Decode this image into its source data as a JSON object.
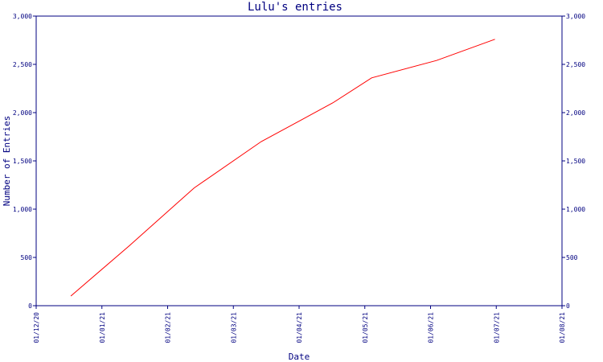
{
  "chart_data": {
    "type": "line",
    "title": "Lulu's entries",
    "xlabel": "Date",
    "ylabel": "Number of Entries",
    "x_ticks": [
      "01/12/20",
      "01/01/21",
      "01/02/21",
      "01/03/21",
      "01/04/21",
      "01/05/21",
      "01/06/21",
      "01/07/21",
      "01/08/21"
    ],
    "y_ticks": [
      "0",
      "500",
      "1,000",
      "1,500",
      "2,000",
      "2,500",
      "3,000"
    ],
    "ylim": [
      0,
      3000
    ],
    "xlim": [
      "2020-12-01",
      "2021-08-01"
    ],
    "grid": false,
    "series": [
      {
        "color": "#ff0000",
        "points": [
          {
            "x": "2020-12-17",
            "y": 100
          },
          {
            "x": "2021-01-13",
            "y": 620
          },
          {
            "x": "2021-02-12",
            "y": 1220
          },
          {
            "x": "2021-03-15",
            "y": 1700
          },
          {
            "x": "2021-04-17",
            "y": 2100
          },
          {
            "x": "2021-05-05",
            "y": 2360
          },
          {
            "x": "2021-06-04",
            "y": 2540
          },
          {
            "x": "2021-07-01",
            "y": 2760
          }
        ]
      }
    ]
  }
}
